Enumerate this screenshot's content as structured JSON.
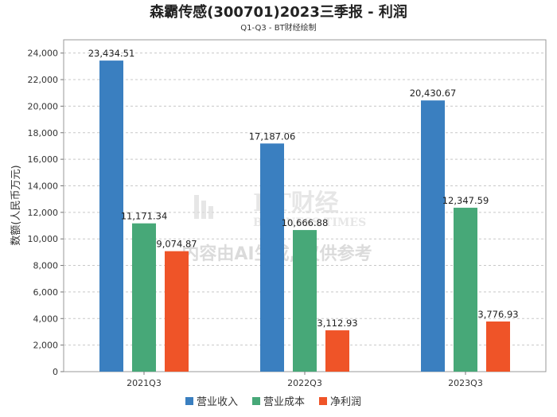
{
  "chart_data": {
    "type": "bar",
    "title": "森霸传感(300701)2023三季报 - 利润",
    "subtitle": "Q1-Q3 - BT财经绘制",
    "ylabel": "数额(人民币万元)",
    "xlabel": "",
    "categories": [
      "2021Q3",
      "2022Q3",
      "2023Q3"
    ],
    "ylim": [
      0,
      25000
    ],
    "yticks": [
      0,
      2000,
      4000,
      6000,
      8000,
      10000,
      12000,
      14000,
      16000,
      18000,
      20000,
      22000,
      24000
    ],
    "ytick_labels": [
      "0",
      "2,000",
      "4,000",
      "6,000",
      "8,000",
      "10,000",
      "12,000",
      "14,000",
      "16,000",
      "18,000",
      "20,000",
      "22,000",
      "24,000"
    ],
    "grid": true,
    "legend_position": "bottom",
    "series": [
      {
        "name": "营业收入",
        "color": "#3a7fc0",
        "values": [
          23434.51,
          17187.06,
          20430.67
        ],
        "labels": [
          "23,434.51",
          "17,187.06",
          "20,430.67"
        ]
      },
      {
        "name": "营业成本",
        "color": "#47a878",
        "values": [
          11171.34,
          10666.88,
          12347.59
        ],
        "labels": [
          "11,171.34",
          "10,666.88",
          "12,347.59"
        ]
      },
      {
        "name": "净利润",
        "color": "#ef5428",
        "values": [
          9074.87,
          3112.93,
          3776.93
        ],
        "labels": [
          "9,074.87",
          "3,112.93",
          "3,776.93"
        ]
      }
    ]
  },
  "watermark": {
    "logo_text": "BT财经",
    "logo_sub": "BUSINESS TIMES",
    "notice": "内容由AI生成, 仅供参考"
  }
}
